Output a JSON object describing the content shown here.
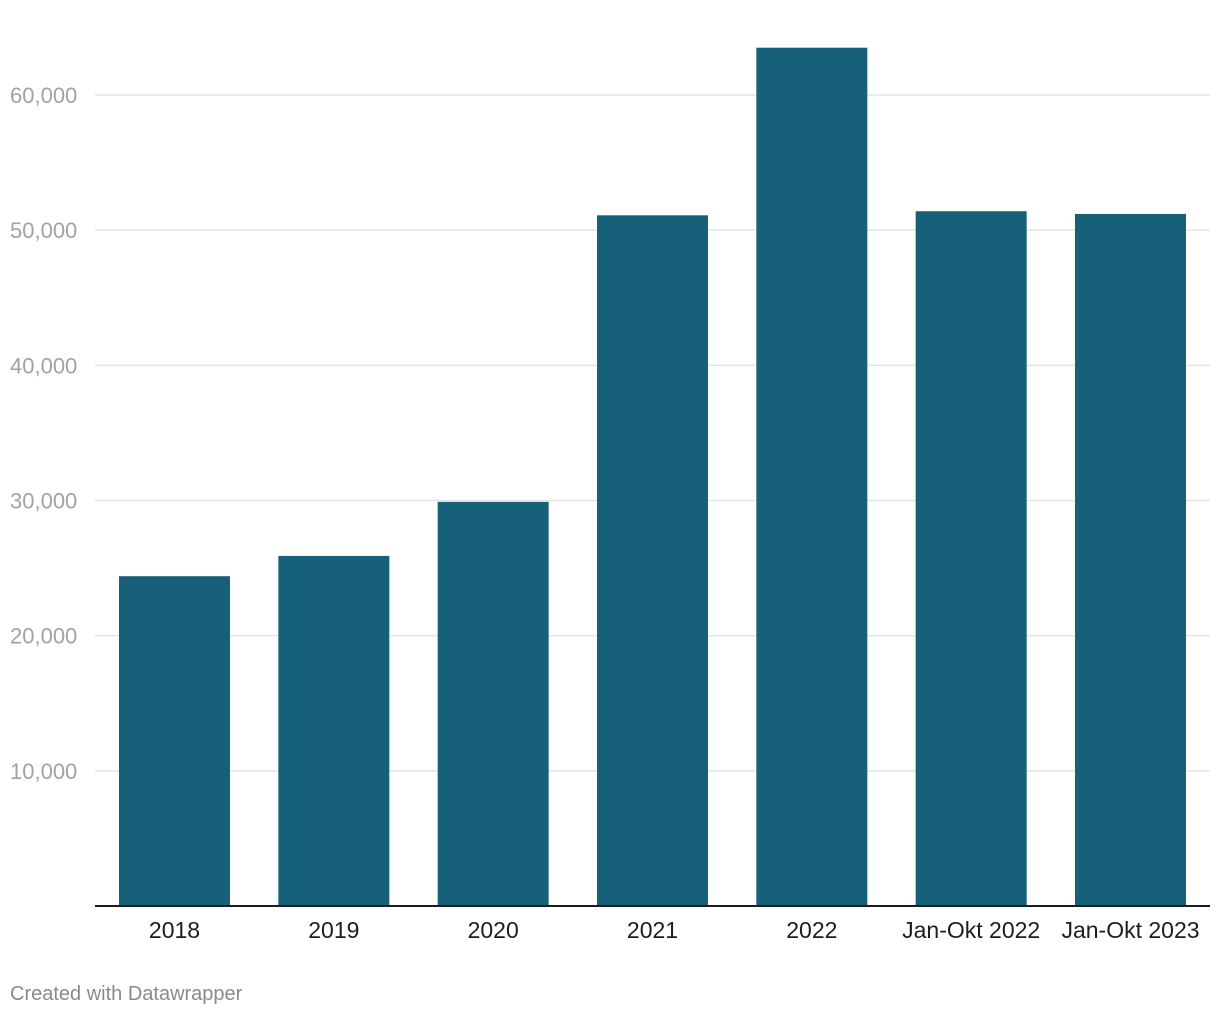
{
  "chart_data": {
    "type": "bar",
    "title": "",
    "xlabel": "",
    "ylabel": "",
    "categories": [
      "2018",
      "2019",
      "2020",
      "2021",
      "2022",
      "Jan-Okt 2022",
      "Jan-Okt 2023"
    ],
    "values": [
      24400,
      25900,
      29900,
      51100,
      63500,
      51400,
      51200
    ],
    "ylim": [
      0,
      65000
    ],
    "yticks": [
      10000,
      20000,
      30000,
      40000,
      50000,
      60000
    ],
    "ytick_labels": [
      "10,000",
      "20,000",
      "30,000",
      "40,000",
      "50,000",
      "60,000"
    ],
    "grid": true,
    "bar_color": "#17607a"
  },
  "footer": {
    "credit": "Created with Datawrapper"
  }
}
